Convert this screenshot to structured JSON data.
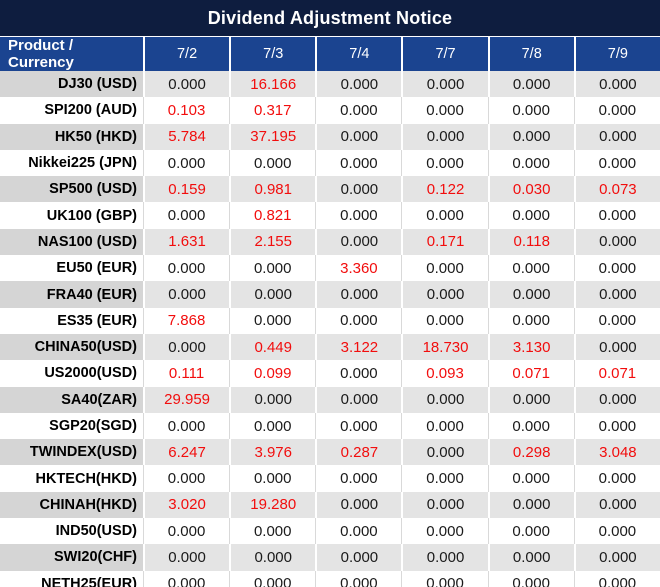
{
  "title": "Dividend Adjustment Notice",
  "table": {
    "product_header": "Product / Currency",
    "date_headers": [
      "7/2",
      "7/3",
      "7/4",
      "7/7",
      "7/8",
      "7/9"
    ],
    "rows": [
      {
        "product": "DJ30 (USD)",
        "values": [
          "0.000",
          "16.166",
          "0.000",
          "0.000",
          "0.000",
          "0.000"
        ],
        "red": [
          false,
          true,
          false,
          false,
          false,
          false
        ]
      },
      {
        "product": "SPI200 (AUD)",
        "values": [
          "0.103",
          "0.317",
          "0.000",
          "0.000",
          "0.000",
          "0.000"
        ],
        "red": [
          true,
          true,
          false,
          false,
          false,
          false
        ]
      },
      {
        "product": "HK50 (HKD)",
        "values": [
          "5.784",
          "37.195",
          "0.000",
          "0.000",
          "0.000",
          "0.000"
        ],
        "red": [
          true,
          true,
          false,
          false,
          false,
          false
        ]
      },
      {
        "product": "Nikkei225 (JPN)",
        "values": [
          "0.000",
          "0.000",
          "0.000",
          "0.000",
          "0.000",
          "0.000"
        ],
        "red": [
          false,
          false,
          false,
          false,
          false,
          false
        ]
      },
      {
        "product": "SP500 (USD)",
        "values": [
          "0.159",
          "0.981",
          "0.000",
          "0.122",
          "0.030",
          "0.073"
        ],
        "red": [
          true,
          true,
          false,
          true,
          true,
          true
        ]
      },
      {
        "product": "UK100 (GBP)",
        "values": [
          "0.000",
          "0.821",
          "0.000",
          "0.000",
          "0.000",
          "0.000"
        ],
        "red": [
          false,
          true,
          false,
          false,
          false,
          false
        ]
      },
      {
        "product": "NAS100 (USD)",
        "values": [
          "1.631",
          "2.155",
          "0.000",
          "0.171",
          "0.118",
          "0.000"
        ],
        "red": [
          true,
          true,
          false,
          true,
          true,
          false
        ]
      },
      {
        "product": "EU50 (EUR)",
        "values": [
          "0.000",
          "0.000",
          "3.360",
          "0.000",
          "0.000",
          "0.000"
        ],
        "red": [
          false,
          false,
          true,
          false,
          false,
          false
        ]
      },
      {
        "product": "FRA40 (EUR)",
        "values": [
          "0.000",
          "0.000",
          "0.000",
          "0.000",
          "0.000",
          "0.000"
        ],
        "red": [
          false,
          false,
          false,
          false,
          false,
          false
        ]
      },
      {
        "product": "ES35 (EUR)",
        "values": [
          "7.868",
          "0.000",
          "0.000",
          "0.000",
          "0.000",
          "0.000"
        ],
        "red": [
          true,
          false,
          false,
          false,
          false,
          false
        ]
      },
      {
        "product": "CHINA50(USD)",
        "values": [
          "0.000",
          "0.449",
          "3.122",
          "18.730",
          "3.130",
          "0.000"
        ],
        "red": [
          false,
          true,
          true,
          true,
          true,
          false
        ]
      },
      {
        "product": "US2000(USD)",
        "values": [
          "0.111",
          "0.099",
          "0.000",
          "0.093",
          "0.071",
          "0.071"
        ],
        "red": [
          true,
          true,
          false,
          true,
          true,
          true
        ]
      },
      {
        "product": "SA40(ZAR)",
        "values": [
          "29.959",
          "0.000",
          "0.000",
          "0.000",
          "0.000",
          "0.000"
        ],
        "red": [
          true,
          false,
          false,
          false,
          false,
          false
        ]
      },
      {
        "product": "SGP20(SGD)",
        "values": [
          "0.000",
          "0.000",
          "0.000",
          "0.000",
          "0.000",
          "0.000"
        ],
        "red": [
          false,
          false,
          false,
          false,
          false,
          false
        ]
      },
      {
        "product": "TWINDEX(USD)",
        "values": [
          "6.247",
          "3.976",
          "0.287",
          "0.000",
          "0.298",
          "3.048"
        ],
        "red": [
          true,
          true,
          true,
          false,
          true,
          true
        ]
      },
      {
        "product": "HKTECH(HKD)",
        "values": [
          "0.000",
          "0.000",
          "0.000",
          "0.000",
          "0.000",
          "0.000"
        ],
        "red": [
          false,
          false,
          false,
          false,
          false,
          false
        ]
      },
      {
        "product": "CHINAH(HKD)",
        "values": [
          "3.020",
          "19.280",
          "0.000",
          "0.000",
          "0.000",
          "0.000"
        ],
        "red": [
          true,
          true,
          false,
          false,
          false,
          false
        ]
      },
      {
        "product": "IND50(USD)",
        "values": [
          "0.000",
          "0.000",
          "0.000",
          "0.000",
          "0.000",
          "0.000"
        ],
        "red": [
          false,
          false,
          false,
          false,
          false,
          false
        ]
      },
      {
        "product": "SWI20(CHF)",
        "values": [
          "0.000",
          "0.000",
          "0.000",
          "0.000",
          "0.000",
          "0.000"
        ],
        "red": [
          false,
          false,
          false,
          false,
          false,
          false
        ]
      },
      {
        "product": "NETH25(EUR)",
        "values": [
          "0.000",
          "0.000",
          "0.000",
          "0.000",
          "0.000",
          "0.000"
        ],
        "red": [
          false,
          false,
          false,
          false,
          false,
          false
        ]
      }
    ]
  },
  "colors": {
    "title_bg": "#0e1d3f",
    "header_bg": "#1b4490",
    "header_text": "#ffffff",
    "product_text": "#000000",
    "value_text": "#1a1a1a",
    "red_text": "#f20d0d",
    "gray_row_product_bg": "#d5d5d5",
    "gray_row_value_bg": "#e4e4e4",
    "gray_row_separator": "#ffffff",
    "white_row_separator": "#d9d9d9"
  }
}
